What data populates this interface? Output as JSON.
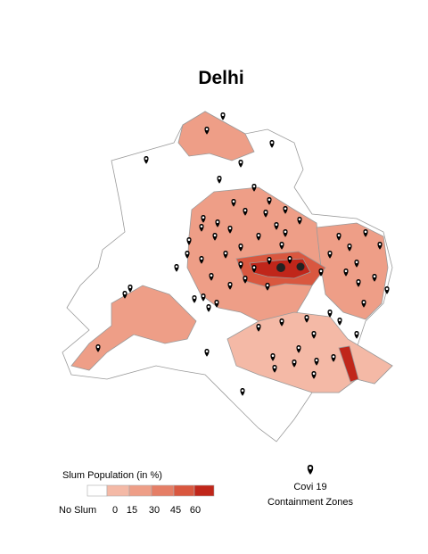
{
  "title": "Delhi",
  "legend": {
    "title": "Slum Population (in %)",
    "no_slum_label": "No Slum",
    "bins": [
      {
        "color": "#ffffff"
      },
      {
        "color": "#f4b9a6"
      },
      {
        "color": "#ee9e87"
      },
      {
        "color": "#e57e66"
      },
      {
        "color": "#d9573f"
      },
      {
        "color": "#c0261a"
      }
    ],
    "ticks": [
      0,
      15,
      30,
      45,
      60
    ]
  },
  "marker_legend": {
    "line1": "Covi 19",
    "line2": "Containment Zones"
  }
}
